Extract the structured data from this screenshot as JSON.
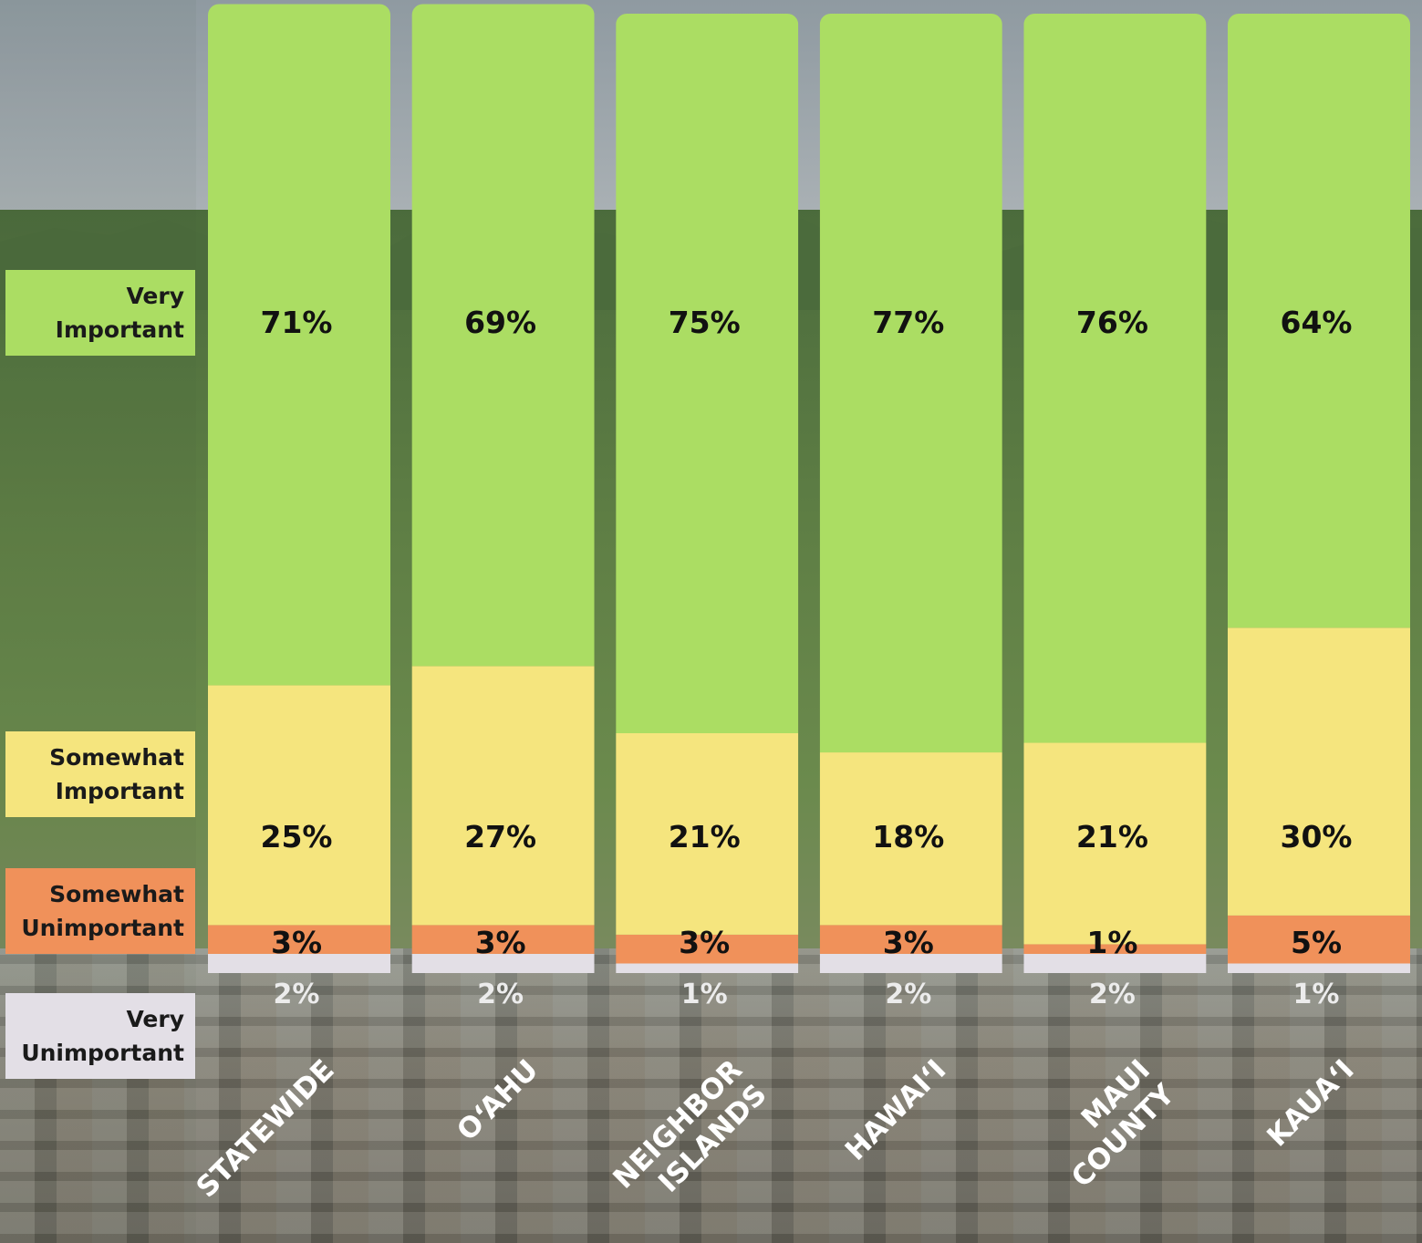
{
  "chart_data": {
    "type": "bar",
    "stacked": true,
    "orientation": "vertical",
    "categories": [
      "STATEWIDE",
      "O‘AHU",
      "NEIGHBOR ISLANDS",
      "HAWAI‘I",
      "MAUI COUNTY",
      "KAUA‘I"
    ],
    "series": [
      {
        "name": "Very Unimportant",
        "values": [
          2,
          2,
          1,
          2,
          2,
          1
        ],
        "labels": [
          "2%",
          "2%",
          "1%",
          "2%",
          "2%",
          "1%"
        ],
        "color": "#e3dfe6"
      },
      {
        "name": "Somewhat Unimportant",
        "values": [
          3,
          3,
          3,
          3,
          1,
          5
        ],
        "labels": [
          "3%",
          "3%",
          "3%",
          "3%",
          "1%",
          "5%"
        ],
        "color": "#f0915a"
      },
      {
        "name": "Somewhat Important",
        "values": [
          25,
          27,
          21,
          18,
          21,
          30
        ],
        "labels": [
          "25%",
          "27%",
          "21%",
          "18%",
          "21%",
          "30%"
        ],
        "color": "#f5e57e"
      },
      {
        "name": "Very Important",
        "values": [
          71,
          69,
          75,
          77,
          76,
          64
        ],
        "labels": [
          "71%",
          "69%",
          "75%",
          "77%",
          "76%",
          "64%"
        ],
        "color": "#abdd63"
      }
    ],
    "legend_position": "left",
    "grid": false
  },
  "legend": {
    "very_important": [
      "Very",
      "Important"
    ],
    "somewhat_important": [
      "Somewhat",
      "Important"
    ],
    "somewhat_unimportant": [
      "Somewhat",
      "Unimportant"
    ],
    "very_unimportant": [
      "Very",
      "Unimportant"
    ]
  },
  "colors": {
    "very_important": "#abdd63",
    "somewhat_important": "#f5e57e",
    "somewhat_unimportant": "#f0915a",
    "very_unimportant": "#e3dfe6"
  }
}
